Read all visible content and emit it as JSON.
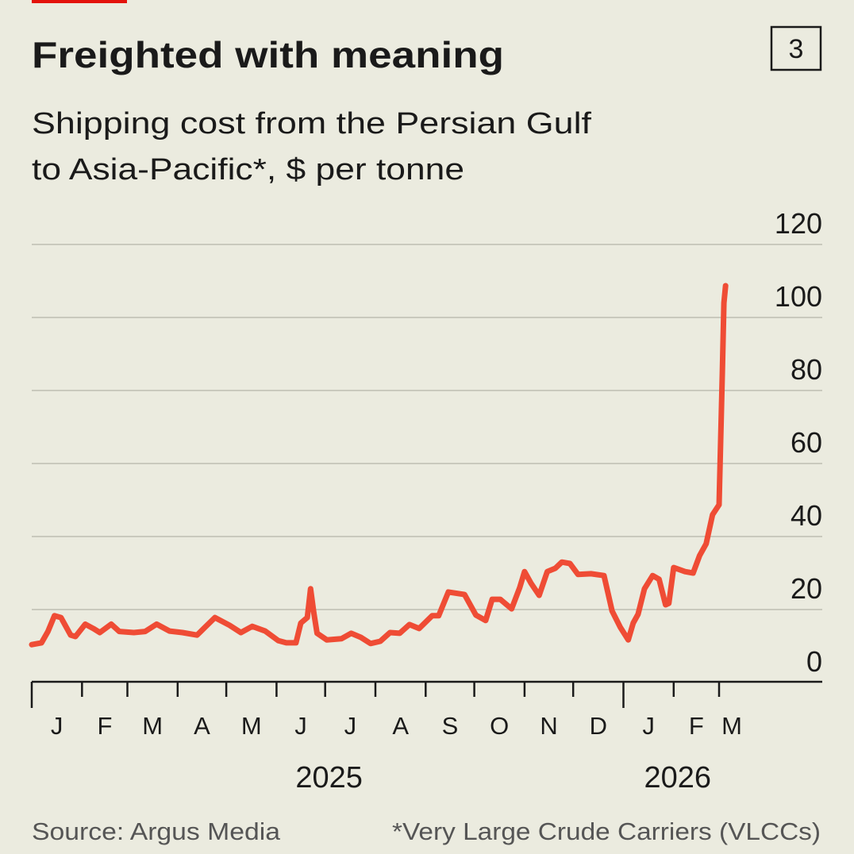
{
  "title": "Freighted with meaning",
  "chart_number": "3",
  "subtitle_lines": [
    "Shipping cost from the Persian Gulf",
    "to Asia-Pacific*, $ per tonne"
  ],
  "source": "Source: Argus Media",
  "footnote": "*Very Large Crude Carriers (VLCCs)",
  "colors": {
    "background": "#ebebdf",
    "line": "#ef4c35",
    "accent_bar": "#e3120b",
    "grid": "#c9c9bd",
    "text": "#1a1a1a",
    "muted": "#555555"
  },
  "chart_data": {
    "type": "line",
    "title": "Freighted with meaning",
    "subtitle": "Shipping cost from the Persian Gulf to Asia-Pacific*, $ per tonne",
    "ylim": [
      0,
      120
    ],
    "yticks": [
      0,
      20,
      40,
      60,
      80,
      100,
      120
    ],
    "y_axis_side": "right",
    "grid": true,
    "xlim": [
      "2025-01-01",
      "2026-03-31"
    ],
    "month_ticks": [
      "2025-01-01",
      "2025-02-01",
      "2025-03-01",
      "2025-04-01",
      "2025-05-01",
      "2025-06-01",
      "2025-07-01",
      "2025-08-01",
      "2025-09-01",
      "2025-10-01",
      "2025-11-01",
      "2025-12-01",
      "2026-01-01",
      "2026-02-01",
      "2026-03-01"
    ],
    "month_labels": [
      "J",
      "F",
      "M",
      "A",
      "M",
      "J",
      "J",
      "A",
      "S",
      "O",
      "N",
      "D",
      "J",
      "F",
      "M"
    ],
    "year_labels": [
      {
        "label": "2025",
        "at": "2025-07-01"
      },
      {
        "label": "2026",
        "at": "2026-02-01"
      }
    ],
    "series": [
      {
        "points": [
          [
            "2025-01-01",
            10.4
          ],
          [
            "2025-01-07",
            10.9
          ],
          [
            "2025-01-11",
            14
          ],
          [
            "2025-01-15",
            18.3
          ],
          [
            "2025-01-19",
            17.8
          ],
          [
            "2025-01-25",
            13
          ],
          [
            "2025-01-28",
            12.6
          ],
          [
            "2025-02-03",
            16
          ],
          [
            "2025-02-08",
            14.8
          ],
          [
            "2025-02-12",
            13.7
          ],
          [
            "2025-02-19",
            16
          ],
          [
            "2025-02-24",
            14
          ],
          [
            "2025-03-05",
            13.7
          ],
          [
            "2025-03-12",
            14
          ],
          [
            "2025-03-19",
            16
          ],
          [
            "2025-03-27",
            14.1
          ],
          [
            "2025-04-04",
            13.7
          ],
          [
            "2025-04-13",
            13
          ],
          [
            "2025-04-18",
            15.2
          ],
          [
            "2025-04-24",
            17.8
          ],
          [
            "2025-05-03",
            15.7
          ],
          [
            "2025-05-10",
            13.7
          ],
          [
            "2025-05-17",
            15.4
          ],
          [
            "2025-05-25",
            14.1
          ],
          [
            "2025-06-02",
            11.5
          ],
          [
            "2025-06-07",
            10.9
          ],
          [
            "2025-06-13",
            10.9
          ],
          [
            "2025-06-16",
            16.3
          ],
          [
            "2025-06-20",
            17.8
          ],
          [
            "2025-06-22",
            25.7
          ],
          [
            "2025-06-24",
            19.1
          ],
          [
            "2025-06-26",
            13.5
          ],
          [
            "2025-07-02",
            11.7
          ],
          [
            "2025-07-11",
            12
          ],
          [
            "2025-07-17",
            13.5
          ],
          [
            "2025-07-23",
            12.4
          ],
          [
            "2025-07-29",
            10.7
          ],
          [
            "2025-08-04",
            11.3
          ],
          [
            "2025-08-10",
            13.7
          ],
          [
            "2025-08-16",
            13.5
          ],
          [
            "2025-08-22",
            15.9
          ],
          [
            "2025-08-28",
            14.8
          ],
          [
            "2025-09-05",
            18.3
          ],
          [
            "2025-09-09",
            18.3
          ],
          [
            "2025-09-15",
            24.8
          ],
          [
            "2025-09-25",
            24.1
          ],
          [
            "2025-10-02",
            18.5
          ],
          [
            "2025-10-08",
            17
          ],
          [
            "2025-10-12",
            22.8
          ],
          [
            "2025-10-17",
            22.8
          ],
          [
            "2025-10-24",
            20.2
          ],
          [
            "2025-10-29",
            26
          ],
          [
            "2025-11-01",
            30.4
          ],
          [
            "2025-11-05",
            27.2
          ],
          [
            "2025-11-10",
            23.9
          ],
          [
            "2025-11-15",
            30.4
          ],
          [
            "2025-11-20",
            31.3
          ],
          [
            "2025-11-24",
            33
          ],
          [
            "2025-11-29",
            32.6
          ],
          [
            "2025-12-04",
            29.6
          ],
          [
            "2025-12-12",
            29.8
          ],
          [
            "2025-12-20",
            29.3
          ],
          [
            "2025-12-25",
            19.6
          ],
          [
            "2025-12-30",
            15.2
          ],
          [
            "2026-01-04",
            11.7
          ],
          [
            "2026-01-07",
            16.3
          ],
          [
            "2026-01-10",
            18.7
          ],
          [
            "2026-01-14",
            25.7
          ],
          [
            "2026-01-19",
            29.3
          ],
          [
            "2026-01-23",
            28.3
          ],
          [
            "2026-01-27",
            21.3
          ],
          [
            "2026-01-29",
            21.7
          ],
          [
            "2026-02-01",
            31.5
          ],
          [
            "2026-02-08",
            30.4
          ],
          [
            "2026-02-13",
            30
          ],
          [
            "2026-02-17",
            34.8
          ],
          [
            "2026-02-21",
            38
          ],
          [
            "2026-02-25",
            46
          ],
          [
            "2026-03-01",
            48.7
          ],
          [
            "2026-03-03",
            84.8
          ],
          [
            "2026-03-04",
            104
          ],
          [
            "2026-03-05",
            108.7
          ]
        ]
      }
    ]
  }
}
